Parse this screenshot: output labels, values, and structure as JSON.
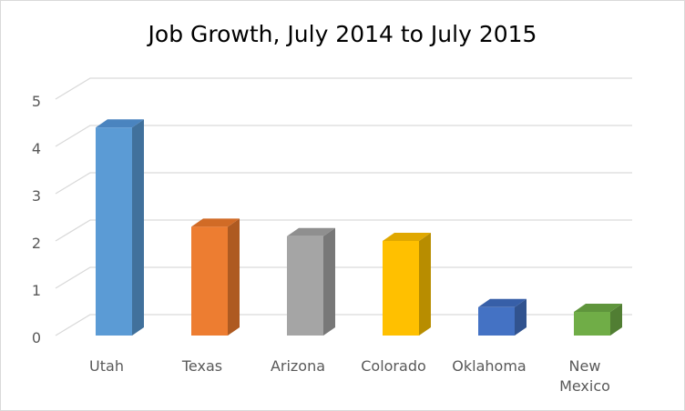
{
  "chart_data": {
    "type": "bar",
    "title": "Job Growth, July 2014 to July 2015",
    "xlabel": "",
    "ylabel": "",
    "categories": [
      "Utah",
      "Texas",
      "Arizona",
      "Colorado",
      "Oklahoma",
      "New Mexico"
    ],
    "category_lines": [
      [
        "Utah"
      ],
      [
        "Texas"
      ],
      [
        "Arizona"
      ],
      [
        "Colorado"
      ],
      [
        "Oklahoma"
      ],
      [
        "New",
        "Mexico"
      ]
    ],
    "values": [
      4.4,
      2.3,
      2.1,
      2.0,
      0.6,
      0.5
    ],
    "ylim": [
      0,
      5
    ],
    "yticks": [
      "0",
      "1",
      "2",
      "3",
      "4",
      "5"
    ],
    "grid": true,
    "legend": "none",
    "style": "3d-column",
    "colors": [
      "#5b9bd5",
      "#ed7d31",
      "#a5a5a5",
      "#ffc000",
      "#4472c4",
      "#70ad47"
    ],
    "side_colors": [
      "#41719c",
      "#ae5a21",
      "#787878",
      "#b88d00",
      "#31538f",
      "#517e33"
    ],
    "top_colors": [
      "#4a84bf",
      "#d16b26",
      "#8f8f8f",
      "#e0a800",
      "#375fa8",
      "#5f953c"
    ],
    "gridline_color": "#d9d9d9"
  }
}
